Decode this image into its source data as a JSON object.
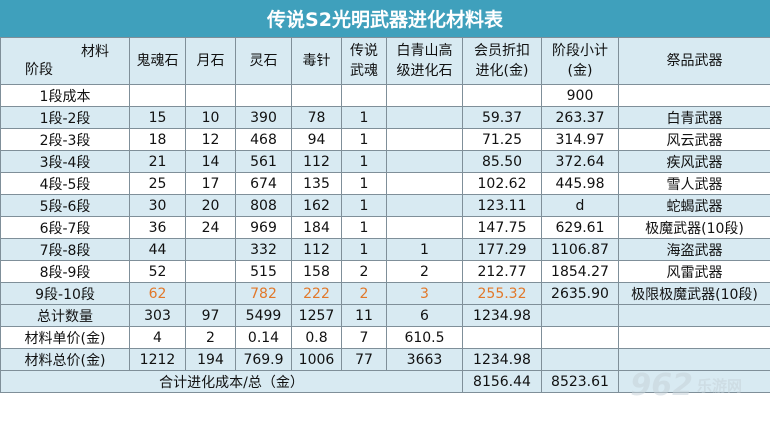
{
  "title": "传说S2光明武器进化材料表",
  "header": {
    "corner_top": "材料",
    "corner_bottom": "阶段",
    "columns": [
      "鬼魂石",
      "月石",
      "灵石",
      "毒针",
      "传说\n武魂",
      "白青山高\n级进化石",
      "会员折扣\n进化(金)",
      "阶段小计\n(金)",
      "祭品武器"
    ]
  },
  "rows": [
    {
      "stage": "1段成本",
      "cells": [
        "",
        "",
        "",
        "",
        "",
        "",
        "",
        "900",
        ""
      ]
    },
    {
      "stage": "1段-2段",
      "cells": [
        "15",
        "10",
        "390",
        "78",
        "1",
        "",
        "59.37",
        "263.37",
        "白青武器"
      ]
    },
    {
      "stage": "2段-3段",
      "cells": [
        "18",
        "12",
        "468",
        "94",
        "1",
        "",
        "71.25",
        "314.97",
        "风云武器"
      ]
    },
    {
      "stage": "3段-4段",
      "cells": [
        "21",
        "14",
        "561",
        "112",
        "1",
        "",
        "85.50",
        "372.64",
        "疾风武器"
      ]
    },
    {
      "stage": "4段-5段",
      "cells": [
        "25",
        "17",
        "674",
        "135",
        "1",
        "",
        "102.62",
        "445.98",
        "雪人武器"
      ]
    },
    {
      "stage": "5段-6段",
      "cells": [
        "30",
        "20",
        "808",
        "162",
        "1",
        "",
        "123.11",
        "d",
        "蛇蝎武器"
      ]
    },
    {
      "stage": "6段-7段",
      "cells": [
        "36",
        "24",
        "969",
        "184",
        "1",
        "",
        "147.75",
        "629.61",
        "极魔武器(10段)"
      ]
    },
    {
      "stage": "7段-8段",
      "cells": [
        "44",
        "",
        "332",
        "112",
        "1",
        "1",
        "177.29",
        "1106.87",
        "海盗武器"
      ]
    },
    {
      "stage": "8段-9段",
      "cells": [
        "52",
        "",
        "515",
        "158",
        "2",
        "2",
        "212.77",
        "1854.27",
        "风雷武器"
      ]
    },
    {
      "stage": "9段-10段",
      "cells": [
        "62",
        "",
        "782",
        "222",
        "2",
        "3",
        "255.32",
        "2635.90",
        "极限极魔武器(10段)"
      ]
    }
  ],
  "summary": {
    "total_qty": {
      "label": "总计数量",
      "cells": [
        "303",
        "97",
        "5499",
        "1257",
        "11",
        "6",
        "1234.98",
        "",
        ""
      ]
    },
    "unit_price": {
      "label": "材料单价(金)",
      "cells": [
        "4",
        "2",
        "0.14",
        "0.8",
        "7",
        "610.5",
        "",
        "",
        ""
      ]
    },
    "total_price": {
      "label": "材料总价(金)",
      "cells": [
        "1212",
        "194",
        "769.9",
        "1006",
        "77",
        "3663",
        "1234.98",
        "",
        ""
      ]
    }
  },
  "grand_total": {
    "label": "合计进化成本/总（金）",
    "value1": "8156.44",
    "value2": "8523.61"
  },
  "watermark": {
    "number": "962",
    "text": "乐游网"
  },
  "colors": {
    "title_bg": "#3fa0bc",
    "band": "#d8eaf2",
    "highlight": "#e2782a",
    "border": "#7f8f99"
  }
}
